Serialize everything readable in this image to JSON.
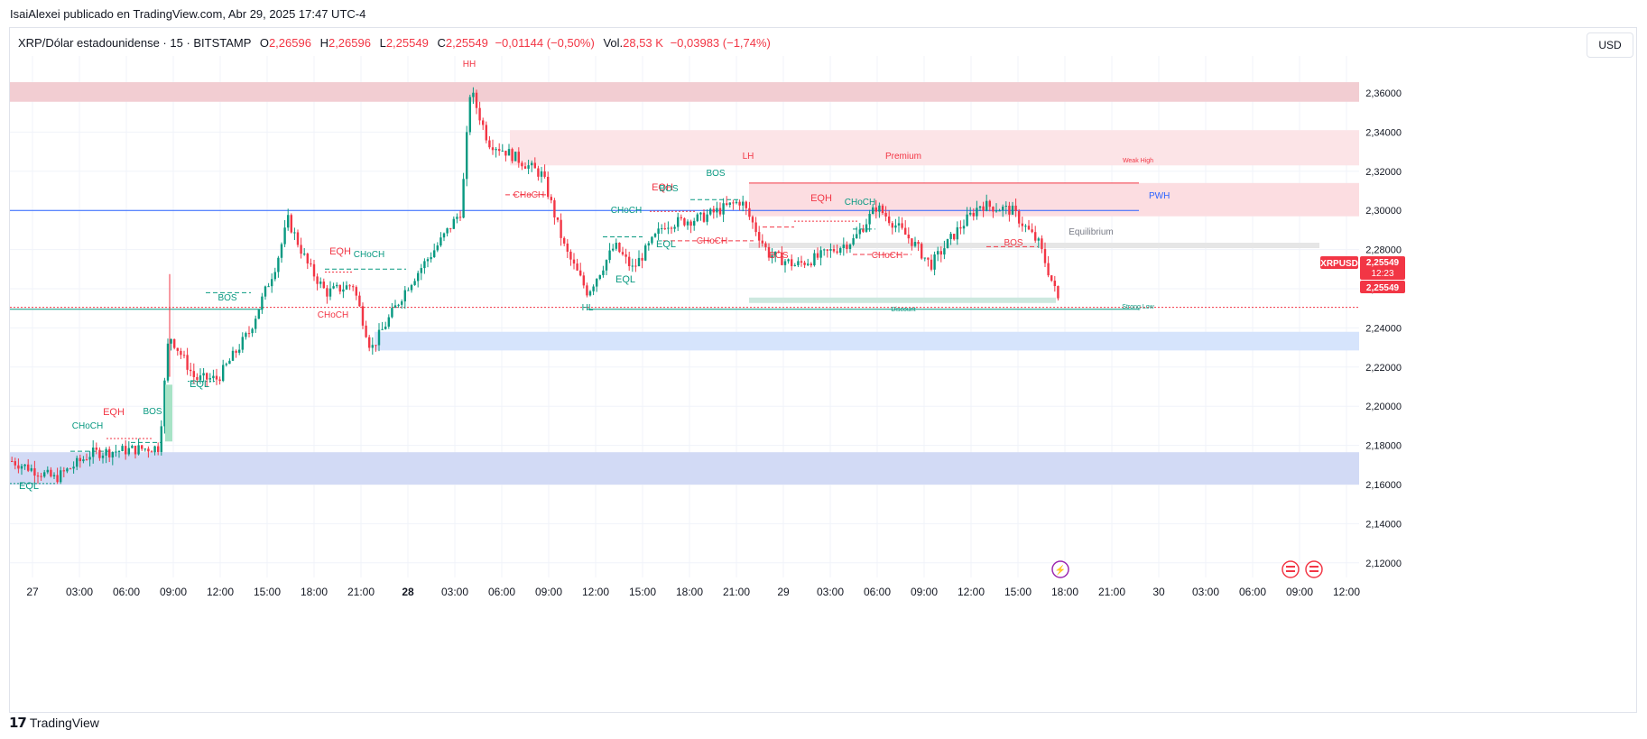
{
  "header": {
    "publish_line": "IsaiAlexei publicado en TradingView.com, Abr 29, 2025 17:47 UTC-4"
  },
  "legend": {
    "symbol": "XRP/Dólar estadounidense · 15 · BITSTAMP",
    "o_label": "O",
    "o_value": "2,26596",
    "h_label": "H",
    "h_value": "2,26596",
    "l_label": "L",
    "l_value": "2,25549",
    "c_label": "C",
    "c_value": "2,25549",
    "change": "−0,01144 (−0,50%)",
    "vol_label": "Vol.",
    "vol_value": "28,53 K",
    "vol_change": "−0,03983 (−1,74%)"
  },
  "currency_button": "USD",
  "footer": {
    "brand": "TradingView"
  },
  "chart_data": {
    "type": "candlestick",
    "y_ticks": [
      "2,36000",
      "2,34000",
      "2,32000",
      "2,30000",
      "2,28000",
      "2,26000",
      "2,24000",
      "2,22000",
      "2,20000",
      "2,18000",
      "2,16000",
      "2,14000",
      "2,12000"
    ],
    "x_ticks": [
      "27",
      "03:00",
      "06:00",
      "09:00",
      "12:00",
      "15:00",
      "18:00",
      "21:00",
      "28",
      "03:00",
      "06:00",
      "09:00",
      "12:00",
      "15:00",
      "18:00",
      "21:00",
      "29",
      "03:00",
      "06:00",
      "09:00",
      "12:00",
      "15:00",
      "18:00",
      "21:00",
      "30",
      "03:00",
      "06:00",
      "09:00",
      "12:00"
    ],
    "price_badge": {
      "symbol": "XRPUSD",
      "price": "2,25549",
      "countdown": "12:23",
      "price2": "2,25549"
    },
    "lines": {
      "pwh_label": "PWH"
    },
    "labels": [
      {
        "text": "HH",
        "color": "#f23645"
      },
      {
        "text": "LH",
        "color": "#f23645"
      },
      {
        "text": "HL",
        "color": "#089981"
      },
      {
        "text": "Premium",
        "color": "#f23645"
      },
      {
        "text": "Equilibrium",
        "color": "#787b86"
      },
      {
        "text": "Discount",
        "color": "#089981"
      },
      {
        "text": "Weak High",
        "color": "#f23645"
      },
      {
        "text": "Strong Low",
        "color": "#089981"
      },
      {
        "text": "EQL",
        "color": "#089981"
      },
      {
        "text": "EQL",
        "color": "#089981"
      },
      {
        "text": "EQL",
        "color": "#089981"
      },
      {
        "text": "EQL",
        "color": "#089981"
      },
      {
        "text": "EQH",
        "color": "#f23645"
      },
      {
        "text": "EQH",
        "color": "#f23645"
      },
      {
        "text": "EQH",
        "color": "#f23645"
      },
      {
        "text": "EQH",
        "color": "#f23645"
      },
      {
        "text": "CHoCH",
        "color": "#089981"
      },
      {
        "text": "CHoCH",
        "color": "#089981"
      },
      {
        "text": "CHoCH",
        "color": "#089981"
      },
      {
        "text": "CHoCH",
        "color": "#089981"
      },
      {
        "text": "CHoCH",
        "color": "#f23645"
      },
      {
        "text": "CHoCH",
        "color": "#f23645"
      },
      {
        "text": "CHoCH",
        "color": "#f23645"
      },
      {
        "text": "CHoCH",
        "color": "#f23645"
      },
      {
        "text": "BOS",
        "color": "#089981"
      },
      {
        "text": "BOS",
        "color": "#089981"
      },
      {
        "text": "BOS",
        "color": "#089981"
      },
      {
        "text": "BOS",
        "color": "#089981"
      },
      {
        "text": "BOS",
        "color": "#f23645"
      },
      {
        "text": "BOS",
        "color": "#f23645"
      }
    ],
    "zones": [
      {
        "name": "upper-supply",
        "from": 2.3555,
        "to": 2.3655,
        "color": "#f2cdd2"
      },
      {
        "name": "premium-supply",
        "from": 2.323,
        "to": 2.341,
        "color": "#fce4e7"
      },
      {
        "name": "weak-high-zone",
        "from": 2.297,
        "to": 2.314,
        "color": "#fcdde1"
      },
      {
        "name": "demand-mid",
        "from": 2.2285,
        "to": 2.238,
        "color": "#d6e4fc"
      },
      {
        "name": "demand-low",
        "from": 2.16,
        "to": 2.1765,
        "color": "#d2daf5"
      }
    ],
    "colors": {
      "up": "#089981",
      "down": "#f23645",
      "pwh": "#2962ff",
      "grid": "#f0f3fa"
    }
  }
}
